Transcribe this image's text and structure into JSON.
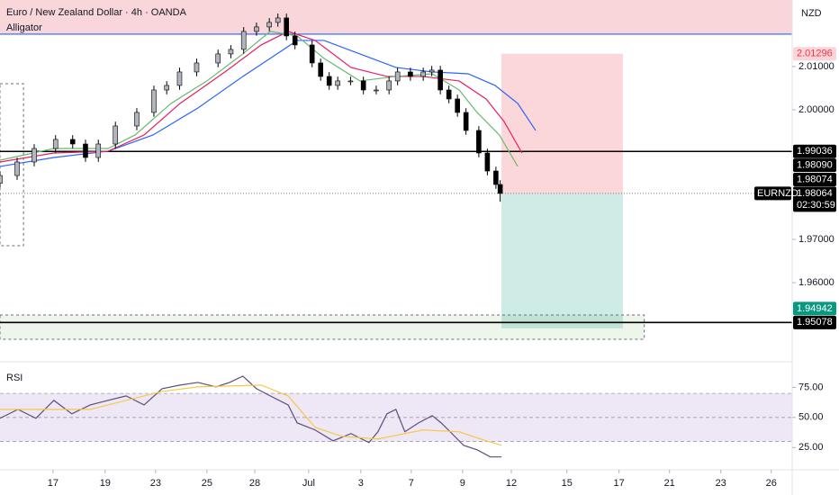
{
  "chart_data": [
    {
      "type": "candlestick",
      "title": "Euro / New Zealand Dollar · 4h · OANDA",
      "indicator": "Alligator",
      "currency": "NZD",
      "symbol": "EURNZD",
      "countdown": "02:30:59",
      "xlim": [
        0,
        185.3
      ],
      "ylim": [
        1.9421,
        2.0254
      ],
      "yticks": [
        {
          "value": 2.01,
          "label": "2.01000"
        },
        {
          "value": 2.0,
          "label": "2.00000"
        },
        {
          "value": 1.97,
          "label": "1.97000"
        },
        {
          "value": 1.96,
          "label": "1.96000"
        }
      ],
      "grid": false,
      "up_color": "#b2b5be",
      "down_color": "#000000",
      "x": [
        0,
        4,
        8,
        13,
        17,
        20,
        23,
        27,
        32,
        36,
        39,
        42,
        46,
        51,
        54,
        57,
        60,
        63,
        65,
        67,
        69,
        73,
        75,
        77,
        79,
        82,
        85,
        88,
        91,
        93,
        96,
        99,
        101,
        103,
        105,
        107,
        109,
        112,
        114,
        116,
        117
      ],
      "open": [
        1.983,
        1.98479,
        1.98792,
        1.99104,
        1.99313,
        1.99208,
        1.98896,
        1.99208,
        1.99625,
        1.99938,
        2.00458,
        2.00563,
        2.00875,
        2.01083,
        2.01292,
        2.01396,
        2.01813,
        2.01917,
        2.02021,
        2.02125,
        2.01708,
        2.015,
        2.01083,
        2.00771,
        2.00563,
        2.00667,
        2.00667,
        2.00458,
        2.00458,
        2.00667,
        2.00875,
        2.00771,
        2.00875,
        2.00917,
        2.00458,
        2.0025,
        1.99938,
        1.99521,
        1.99,
        1.98583,
        1.98271
      ],
      "high": [
        1.98579,
        1.98892,
        1.99204,
        1.99413,
        1.99413,
        1.99308,
        1.99308,
        1.99725,
        2.00038,
        2.00558,
        2.00663,
        2.00975,
        2.01183,
        2.01392,
        2.01496,
        2.01913,
        2.02017,
        2.02121,
        2.02225,
        2.02225,
        2.01808,
        2.016,
        2.01183,
        2.00871,
        2.00767,
        2.00767,
        2.00767,
        2.00558,
        2.00767,
        2.00975,
        2.00975,
        2.00975,
        2.01017,
        2.01017,
        2.00558,
        2.0035,
        2.00038,
        1.99621,
        1.991,
        1.98683,
        1.98371
      ],
      "low": [
        1.982,
        1.98379,
        1.98692,
        1.99004,
        1.99108,
        1.98796,
        1.98796,
        1.99108,
        1.99525,
        1.99838,
        2.00358,
        2.00463,
        2.00775,
        2.00983,
        2.01192,
        2.01296,
        2.01713,
        2.01817,
        2.01921,
        2.01608,
        2.014,
        2.00983,
        2.00671,
        2.00463,
        2.00463,
        2.00567,
        2.00358,
        2.00358,
        2.00358,
        2.00567,
        2.00671,
        2.00671,
        2.00775,
        2.00358,
        2.0015,
        1.99838,
        1.99421,
        1.989,
        1.98483,
        1.98171,
        1.97871
      ],
      "close": [
        1.98479,
        1.98792,
        1.99104,
        1.99313,
        1.99208,
        1.98896,
        1.99208,
        1.99625,
        1.99938,
        2.00458,
        2.00563,
        2.00875,
        2.01083,
        2.01292,
        2.01396,
        2.01813,
        2.01917,
        2.02021,
        2.02125,
        2.01708,
        2.015,
        2.01083,
        2.00771,
        2.00563,
        2.00667,
        2.00667,
        2.00458,
        2.00458,
        2.00667,
        2.00875,
        2.00771,
        2.00875,
        2.00917,
        2.00458,
        2.0025,
        1.99938,
        1.99521,
        1.99,
        1.98583,
        1.98271,
        1.98064
      ],
      "series": [
        {
          "color": "#2962ff",
          "x": [
            0,
            12.6,
            25.3,
            35.8,
            46.3,
            56.8,
            63.2,
            69.5,
            75.8,
            84.2,
            92.6,
            101.1,
            109.5,
            115.8,
            121.1,
            125.3
          ],
          "values": [
            1.98688,
            1.98896,
            1.99042,
            1.99417,
            2.00042,
            2.00771,
            2.01188,
            2.01604,
            2.01604,
            2.01292,
            2.00979,
            2.00875,
            2.00833,
            2.00563,
            2.00146,
            1.99521
          ]
        },
        {
          "color": "#e91e63",
          "x": [
            0,
            12.6,
            25.3,
            33.7,
            42.1,
            52.6,
            61.1,
            67.4,
            73.7,
            82.1,
            90.5,
            98.9,
            107.4,
            113.7,
            117.9,
            122.1
          ],
          "values": [
            1.98792,
            1.99,
            1.99042,
            1.99417,
            2.00146,
            2.00875,
            2.015,
            2.01813,
            2.01604,
            2.00979,
            2.00771,
            2.00771,
            2.00667,
            2.0025,
            1.99729,
            1.99
          ]
        },
        {
          "color": "#66bb6a",
          "x": [
            0,
            12.6,
            25.3,
            31.6,
            40,
            48.4,
            56.8,
            63.2,
            69.5,
            75.8,
            84.2,
            92.6,
            101.1,
            107.4,
            111.6,
            116.8,
            121.1
          ],
          "values": [
            1.98833,
            1.99104,
            1.99104,
            1.99417,
            2.00146,
            2.00667,
            2.01292,
            2.01813,
            2.01708,
            2.01188,
            2.00667,
            2.00771,
            2.00833,
            2.00458,
            1.99938,
            1.99417,
            1.98688
          ]
        }
      ],
      "zones": [
        {
          "top": 2.0254,
          "bottom": 2.0175,
          "x_start": 0,
          "x_end": 185.3,
          "fill": "#f8d6d9",
          "dashed": false
        },
        {
          "top": 2.00604,
          "bottom": 1.96854,
          "x_start": 0,
          "x_end": 5.5,
          "fill": "none",
          "dashed": true
        },
        {
          "top": 1.9525,
          "bottom": 1.94688,
          "x_start": 0,
          "x_end": 150.7,
          "fill": "#eef6ec",
          "dashed": true
        }
      ],
      "levels": [
        {
          "value": 2.0175,
          "color": "#2962ff"
        },
        {
          "value": 1.99036,
          "color": "#000000"
        },
        {
          "value": 1.95078,
          "color": "#000000"
        }
      ],
      "position": {
        "entry": 1.98064,
        "stop": 2.01296,
        "target": 1.94942,
        "x_start": 117.3,
        "x_end": 145.7
      },
      "price_tags": [
        {
          "value": 1.98064,
          "label": "1.98064",
          "color": "#000000",
          "text_color": "#ffffff"
        },
        {
          "value": 1.98074,
          "label": "1.98074",
          "color": "#000000",
          "text_color": "#ffffff"
        },
        {
          "value": 1.9809,
          "label": "1.98090",
          "color": "#000000",
          "text_color": "#ffffff"
        },
        {
          "value": 1.99036,
          "label": "1.99036",
          "color": "#000000",
          "text_color": "#ffffff"
        },
        {
          "value": 1.95078,
          "label": "1.95078",
          "color": "#000000",
          "text_color": "#ffffff"
        },
        {
          "value": 1.94942,
          "label": "1.94942",
          "color": "#089981",
          "text_color": "#ffffff"
        },
        {
          "value": 2.01296,
          "label": "2.01296",
          "color": "#fbd5d8",
          "text_color": "#f23645"
        }
      ]
    },
    {
      "type": "line",
      "title": "RSI",
      "xlim": [
        0,
        185.3
      ],
      "ylim": [
        8,
        94
      ],
      "yticks": [
        {
          "value": 75,
          "label": "75.00"
        },
        {
          "value": 50,
          "label": "50.00"
        },
        {
          "value": 25,
          "label": "25.00"
        }
      ],
      "band": [
        30,
        70
      ],
      "midline": 50,
      "band_color": "#ede7f6",
      "xticks": [
        {
          "value": 12.4,
          "label": "17"
        },
        {
          "value": 24.6,
          "label": "19"
        },
        {
          "value": 36.4,
          "label": "23"
        },
        {
          "value": 48.4,
          "label": "25"
        },
        {
          "value": 59.6,
          "label": "28"
        },
        {
          "value": 72.2,
          "label": "Jul"
        },
        {
          "value": 84.4,
          "label": "3"
        },
        {
          "value": 96.2,
          "label": "7"
        },
        {
          "value": 108.2,
          "label": "9"
        },
        {
          "value": 119.6,
          "label": "12"
        },
        {
          "value": 132.6,
          "label": "15"
        },
        {
          "value": 144.8,
          "label": "17"
        },
        {
          "value": 156.6,
          "label": "21"
        },
        {
          "value": 168.6,
          "label": "23"
        },
        {
          "value": 180.4,
          "label": "26"
        }
      ],
      "series": [
        {
          "color": "#5d4e7a",
          "x": [
            0,
            4.2,
            8.4,
            12.6,
            16.8,
            21.1,
            25.3,
            29.5,
            33.7,
            37.9,
            42.1,
            46.3,
            50.5,
            53.7,
            56.8,
            60,
            63.2,
            67.4,
            69.5,
            73.7,
            77.9,
            82.1,
            86.3,
            88.4,
            90.5,
            92.6,
            94.7,
            97.9,
            101.1,
            103.2,
            105.3,
            108.4,
            111.6,
            114.7,
            117.3
          ],
          "values": [
            49.3,
            56.7,
            49.3,
            64.2,
            53,
            60.4,
            64.2,
            67.9,
            60.4,
            73.9,
            76.9,
            79.1,
            75.4,
            79.1,
            84.3,
            73.9,
            67.9,
            60.4,
            45.5,
            39.6,
            30.6,
            36.6,
            29.1,
            38.1,
            53,
            56.7,
            38.1,
            45.5,
            51.5,
            45.5,
            38.1,
            26.9,
            23.1,
            17.2,
            17.2
          ]
        },
        {
          "color": "#f7c948",
          "x": [
            0,
            21.1,
            37.9,
            46.3,
            61.1,
            67.4,
            73.7,
            80,
            88.4,
            98.9,
            107.4,
            113.7,
            117.3
          ],
          "values": [
            56.7,
            56.7,
            71.6,
            75.4,
            76.9,
            67.9,
            41.8,
            34.3,
            32.1,
            39.6,
            38.1,
            30.6,
            26.9
          ]
        }
      ]
    }
  ]
}
